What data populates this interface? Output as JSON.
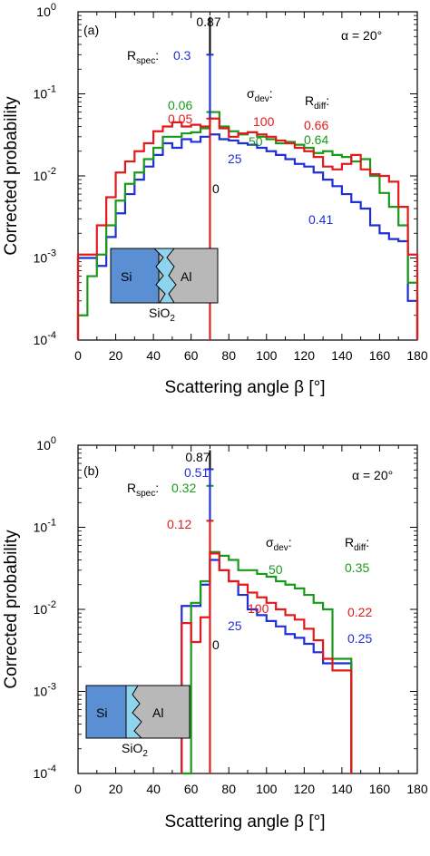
{
  "colors": {
    "red": "#e31a1c",
    "green": "#1a9a1a",
    "blue": "#1f2fd6",
    "black": "#000000",
    "si_fill": "#5b8fd4",
    "sio2_fill": "#8fd4ef",
    "al_fill": "#b8b8b8"
  },
  "chart_data": [
    {
      "type": "line",
      "panel_label": "(a)",
      "alpha_label": "α = 20°",
      "xlabel": "Scattering angle β  [°]",
      "ylabel": "Corrected probability",
      "xlim": [
        0,
        180
      ],
      "ylim": [
        0.0001,
        1
      ],
      "y_scale": "log",
      "x_ticks": [
        "0",
        "20",
        "40",
        "60",
        "80",
        "100",
        "120",
        "140",
        "160",
        "180"
      ],
      "y_ticks": [
        {
          "base": "10",
          "exp": "0"
        },
        {
          "base": "10",
          "exp": "-1"
        },
        {
          "base": "10",
          "exp": "-2"
        },
        {
          "base": "10",
          "exp": "-3"
        },
        {
          "base": "10",
          "exp": "-4"
        }
      ],
      "specular_angle": 70,
      "specular_peak": 0.87,
      "series": [
        {
          "name": "0",
          "color_key": "black",
          "spike": 0.87,
          "x": [],
          "y": []
        },
        {
          "name": "25",
          "color_key": "blue",
          "spike": 0.3,
          "x": [
            0,
            5,
            10,
            15,
            20,
            25,
            30,
            35,
            40,
            45,
            50,
            55,
            60,
            65,
            70,
            75,
            80,
            85,
            90,
            95,
            100,
            105,
            110,
            115,
            120,
            125,
            130,
            135,
            140,
            145,
            150,
            155,
            160,
            165,
            170,
            175,
            180
          ],
          "y": [
            0.001,
            0.001,
            0.0008,
            0.0018,
            0.0035,
            0.006,
            0.009,
            0.013,
            0.018,
            0.025,
            0.022,
            0.028,
            0.026,
            0.03,
            0.032,
            0.028,
            0.027,
            0.025,
            0.024,
            0.022,
            0.02,
            0.018,
            0.016,
            0.014,
            0.013,
            0.011,
            0.009,
            0.0075,
            0.006,
            0.0048,
            0.004,
            0.0025,
            0.002,
            0.0017,
            0.0016,
            0.0003,
            0.0003
          ]
        },
        {
          "name": "50",
          "color_key": "green",
          "spike": 0.06,
          "x": [
            0,
            5,
            10,
            15,
            20,
            25,
            30,
            35,
            40,
            45,
            50,
            55,
            60,
            65,
            70,
            75,
            80,
            85,
            90,
            95,
            100,
            105,
            110,
            115,
            120,
            125,
            130,
            135,
            140,
            145,
            150,
            155,
            160,
            165,
            170,
            175,
            180
          ],
          "y": [
            0.0002,
            0.0006,
            0.0011,
            0.0025,
            0.005,
            0.008,
            0.011,
            0.016,
            0.022,
            0.03,
            0.03,
            0.033,
            0.034,
            0.038,
            0.06,
            0.04,
            0.035,
            0.032,
            0.034,
            0.03,
            0.028,
            0.025,
            0.026,
            0.024,
            0.022,
            0.019,
            0.02,
            0.018,
            0.017,
            0.015,
            0.016,
            0.01,
            0.0062,
            0.0042,
            0.0025,
            0.0005,
            0.0005
          ]
        },
        {
          "name": "100",
          "color_key": "red",
          "spike": 0.05,
          "x": [
            0,
            5,
            10,
            15,
            20,
            25,
            30,
            35,
            40,
            45,
            50,
            55,
            60,
            65,
            70,
            75,
            80,
            85,
            90,
            95,
            100,
            105,
            110,
            115,
            120,
            125,
            130,
            135,
            140,
            145,
            150,
            155,
            160,
            165,
            170,
            175,
            180
          ],
          "y": [
            0.0011,
            0.0011,
            0.0025,
            0.0055,
            0.011,
            0.015,
            0.02,
            0.025,
            0.035,
            0.04,
            0.045,
            0.04,
            0.042,
            0.04,
            0.05,
            0.038,
            0.03,
            0.033,
            0.034,
            0.032,
            0.03,
            0.027,
            0.025,
            0.022,
            0.02,
            0.017,
            0.013,
            0.012,
            0.014,
            0.018,
            0.012,
            0.0105,
            0.01,
            0.0085,
            0.0042,
            0.0011,
            0.0011
          ]
        }
      ],
      "annotations": {
        "peak_label": "0.87",
        "r_spec_label": "R",
        "r_spec_sub": "spec",
        "r_spec_colon": ":",
        "sigma_dev_label": "σ",
        "sigma_dev_sub": "dev",
        "sigma_colon": ":",
        "r_diff_label": "R",
        "r_diff_sub": "diff",
        "r_diff_colon": ":",
        "blue_spec": "0.3",
        "green_spec": "0.06",
        "red_spec": "0.05",
        "sigma_red": "100",
        "sigma_green": "50",
        "sigma_blue": "25",
        "sigma_black": "0",
        "rdiff_red": "0.66",
        "rdiff_green": "0.64",
        "rdiff_blue": "0.41"
      },
      "inset": {
        "si": "Si",
        "al": "Al",
        "sio2": "SiO",
        "sio2_sub": "2"
      }
    },
    {
      "type": "line",
      "panel_label": "(b)",
      "alpha_label": "α = 20°",
      "xlabel": "Scattering angle β  [°]",
      "ylabel": "Corrected probability",
      "xlim": [
        0,
        180
      ],
      "ylim": [
        0.0001,
        1
      ],
      "y_scale": "log",
      "x_ticks": [
        "0",
        "20",
        "40",
        "60",
        "80",
        "100",
        "120",
        "140",
        "160",
        "180"
      ],
      "y_ticks": [
        {
          "base": "10",
          "exp": "0"
        },
        {
          "base": "10",
          "exp": "-1"
        },
        {
          "base": "10",
          "exp": "-2"
        },
        {
          "base": "10",
          "exp": "-3"
        },
        {
          "base": "10",
          "exp": "-4"
        }
      ],
      "specular_angle": 70,
      "specular_peak": 0.87,
      "series": [
        {
          "name": "0",
          "color_key": "black",
          "spike": 0.87,
          "x": [],
          "y": []
        },
        {
          "name": "25",
          "color_key": "blue",
          "spike": 0.51,
          "x": [
            55,
            60,
            65,
            70,
            75,
            80,
            85,
            90,
            95,
            100,
            105,
            110,
            115,
            120,
            125,
            130,
            135,
            140
          ],
          "y": [
            0.011,
            0.011,
            0.02,
            0.04,
            0.03,
            0.022,
            0.015,
            0.01,
            0.0085,
            0.0072,
            0.0062,
            0.005,
            0.0045,
            0.0038,
            0.003,
            0.0022,
            0.0022,
            0.0022
          ]
        },
        {
          "name": "50",
          "color_key": "green",
          "spike": 0.32,
          "x": [
            55,
            60,
            65,
            70,
            75,
            80,
            85,
            90,
            95,
            100,
            105,
            110,
            115,
            120,
            125,
            130,
            135,
            140
          ],
          "y": [
            0.0001,
            0.012,
            0.022,
            0.05,
            0.045,
            0.04,
            0.03,
            0.03,
            0.027,
            0.025,
            0.022,
            0.02,
            0.018,
            0.015,
            0.012,
            0.01,
            0.0025,
            0.0025
          ]
        },
        {
          "name": "100",
          "color_key": "red",
          "spike": 0.12,
          "x": [
            55,
            60,
            65,
            70,
            75,
            80,
            85,
            90,
            95,
            100,
            105,
            110,
            115,
            120,
            125,
            130,
            135,
            140
          ],
          "y": [
            0.0068,
            0.004,
            0.008,
            0.048,
            0.03,
            0.022,
            0.02,
            0.016,
            0.014,
            0.012,
            0.01,
            0.0085,
            0.0075,
            0.0058,
            0.0042,
            0.0025,
            0.0018,
            0.0018
          ]
        }
      ],
      "annotations": {
        "peak_label": "0.87",
        "r_spec_label": "R",
        "r_spec_sub": "spec",
        "r_spec_colon": ":",
        "sigma_dev_label": "σ",
        "sigma_dev_sub": "dev",
        "sigma_colon": ":",
        "r_diff_label": "R",
        "r_diff_sub": "diff",
        "r_diff_colon": ":",
        "blue_spec": "0.51",
        "green_spec": "0.32",
        "red_spec": "0.12",
        "sigma_red": "100",
        "sigma_green": "50",
        "sigma_blue": "25",
        "sigma_black": "0",
        "rdiff_red": "0.22",
        "rdiff_green": "0.35",
        "rdiff_blue": "0.25"
      },
      "inset": {
        "si": "Si",
        "al": "Al",
        "sio2": "SiO",
        "sio2_sub": "2"
      }
    }
  ]
}
